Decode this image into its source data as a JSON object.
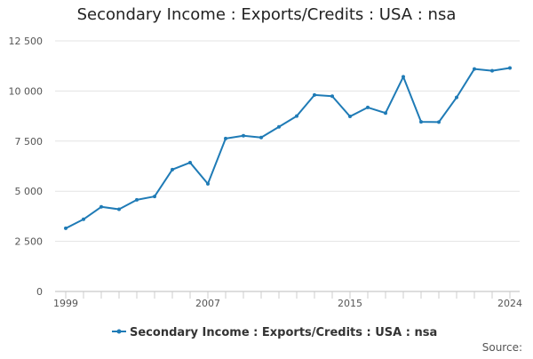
{
  "chart_data": {
    "type": "line",
    "title": "Secondary Income : Exports/Credits : USA : nsa",
    "xlabel": "",
    "ylabel": "",
    "x": [
      1999,
      2000,
      2001,
      2002,
      2003,
      2004,
      2005,
      2006,
      2007,
      2008,
      2009,
      2010,
      2011,
      2012,
      2013,
      2014,
      2015,
      2016,
      2017,
      2018,
      2019,
      2020,
      2021,
      2022,
      2023,
      2024
    ],
    "series": [
      {
        "name": "Secondary Income : Exports/Credits : USA : nsa",
        "color": "#1f7bb6",
        "values": [
          3150,
          3600,
          4220,
          4100,
          4570,
          4740,
          6080,
          6430,
          5370,
          7630,
          7770,
          7680,
          8210,
          8750,
          9800,
          9740,
          8730,
          9180,
          8900,
          10710,
          8460,
          8450,
          9680,
          11100,
          11010,
          11150
        ]
      }
    ],
    "xticks": [
      1999,
      2007,
      2015,
      2024
    ],
    "xtick_labels": [
      "1999",
      "2007",
      "2015",
      "2024"
    ],
    "yticks": [
      0,
      2500,
      5000,
      7500,
      10000,
      12500
    ],
    "ytick_labels": [
      "0",
      "2 500",
      "5 000",
      "7 500",
      "10 000",
      "12 500"
    ],
    "xlim": [
      1999,
      2024
    ],
    "ylim": [
      0,
      12500
    ],
    "grid": "horizontal",
    "legend_position": "bottom-center",
    "source_label": "Source:"
  }
}
